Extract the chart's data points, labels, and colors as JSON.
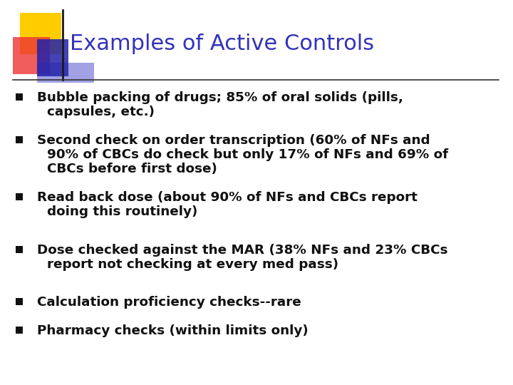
{
  "title": "Examples of Active Controls",
  "title_color": "#3333BB",
  "title_fontsize": 22,
  "background_color": "#FFFFFF",
  "bullet_color": "#111111",
  "bullet_square_color": "#111111",
  "bullet_fontsize": 13.2,
  "accent_colors": {
    "yellow": "#FFCC00",
    "red": "#EE3333",
    "blue_dark": "#2222AA",
    "blue_light": "#5555CC"
  },
  "divider_color": "#333333",
  "bullet_lines": [
    [
      "Bubble packing of drugs; 85% of oral solids (pills,",
      "capsules, etc.)"
    ],
    [
      "Second check on order transcription (60% of NFs and",
      "90% of CBCs do check but only 17% of NFs and 69% of",
      "CBCs before first dose)"
    ],
    [
      "Read back dose (about 90% of NFs and CBCs report",
      "doing this routinely)"
    ],
    [
      "Dose checked against the MAR (38% NFs and 23% CBCs",
      "report not checking at every med pass)"
    ],
    [
      "Calculation proficiency checks--rare"
    ],
    [
      "Pharmacy checks (within limits only)"
    ]
  ]
}
